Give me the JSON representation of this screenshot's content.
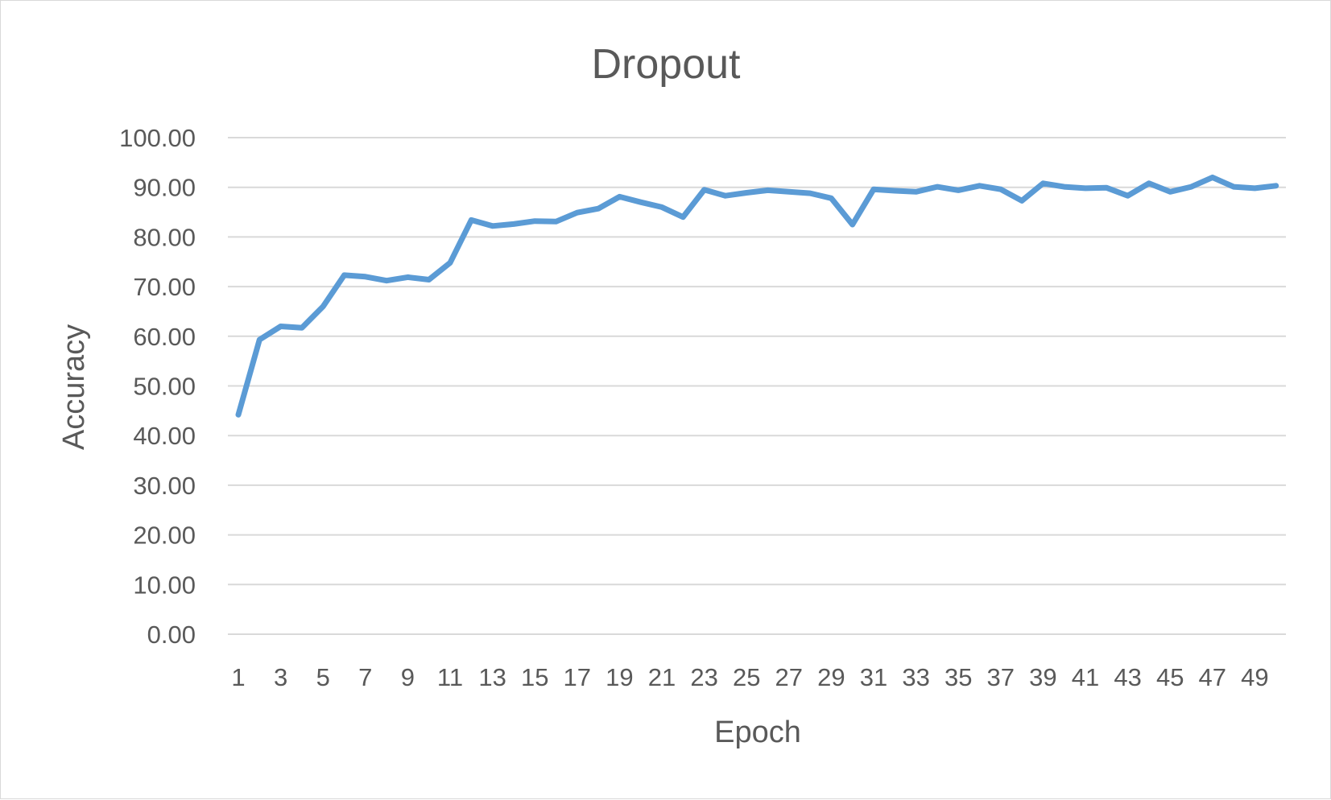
{
  "chart_data": {
    "type": "line",
    "title": "Dropout",
    "xlabel": "Epoch",
    "ylabel": "Accuracy",
    "ylim": [
      0,
      100
    ],
    "yticks": [
      "0.00",
      "10.00",
      "20.00",
      "30.00",
      "40.00",
      "50.00",
      "60.00",
      "70.00",
      "80.00",
      "90.00",
      "100.00"
    ],
    "x": [
      1,
      2,
      3,
      4,
      5,
      6,
      7,
      8,
      9,
      10,
      11,
      12,
      13,
      14,
      15,
      16,
      17,
      18,
      19,
      20,
      21,
      22,
      23,
      24,
      25,
      26,
      27,
      28,
      29,
      30,
      31,
      32,
      33,
      34,
      35,
      36,
      37,
      38,
      39,
      40,
      41,
      42,
      43,
      44,
      45,
      46,
      47,
      48,
      49,
      50
    ],
    "xtick_labels": [
      "1",
      "3",
      "5",
      "7",
      "9",
      "11",
      "13",
      "15",
      "17",
      "19",
      "21",
      "23",
      "25",
      "27",
      "29",
      "31",
      "33",
      "35",
      "37",
      "39",
      "41",
      "43",
      "45",
      "47",
      "49"
    ],
    "grid": true,
    "legend": false,
    "series": [
      {
        "color": "#5b9bd5",
        "values": [
          44.2,
          59.3,
          62.0,
          61.7,
          66.0,
          72.3,
          72.0,
          71.2,
          71.9,
          71.4,
          74.8,
          83.4,
          82.2,
          82.6,
          83.2,
          83.1,
          84.9,
          85.7,
          88.1,
          87.0,
          86.0,
          84.0,
          89.5,
          88.3,
          88.9,
          89.4,
          89.1,
          88.8,
          87.8,
          82.5,
          89.6,
          89.3,
          89.1,
          90.1,
          89.4,
          90.3,
          89.6,
          87.3,
          90.8,
          90.1,
          89.8,
          89.9,
          88.3,
          90.8,
          89.1,
          90.1,
          92.0,
          90.1,
          89.8,
          90.3
        ]
      }
    ]
  }
}
